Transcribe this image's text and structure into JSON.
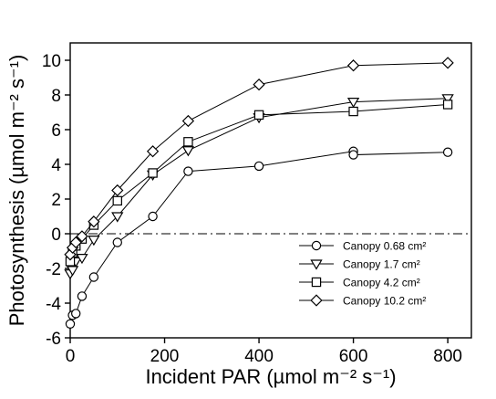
{
  "chart_data": {
    "type": "line",
    "xlabel": "Incident PAR (µmol m⁻² s⁻¹)",
    "ylabel": "Photosynthesis (µmol m⁻² s⁻¹)",
    "xlim": [
      0,
      850
    ],
    "ylim": [
      -6,
      11
    ],
    "x_ticks": [
      0,
      200,
      400,
      600,
      800
    ],
    "y_ticks": [
      -6,
      -4,
      -2,
      0,
      2,
      4,
      6,
      8,
      10
    ],
    "x_tick_labels": [
      "0",
      "200",
      "400",
      "600",
      "800"
    ],
    "y_tick_labels": [
      "-6",
      "-4",
      "-2",
      "0",
      "2",
      "4",
      "6",
      "8",
      "10"
    ],
    "reference_line": {
      "y": 0,
      "style": "dash-dot"
    },
    "grid": false,
    "legend_position": "bottom-right",
    "series": [
      {
        "name": "Canopy 0.68 cm²",
        "marker": "circle",
        "points": [
          [
            0,
            -5.2
          ],
          [
            5,
            -4.7
          ],
          [
            12,
            -4.6
          ],
          [
            25,
            -3.6
          ],
          [
            50,
            -2.5
          ],
          [
            100,
            -0.5
          ],
          [
            175,
            1.0
          ],
          [
            250,
            3.6
          ],
          [
            400,
            3.9
          ],
          [
            600,
            4.75
          ],
          [
            600,
            4.55
          ],
          [
            800,
            4.7
          ]
        ]
      },
      {
        "name": "Canopy 1.7 cm²",
        "marker": "triangle-down",
        "points": [
          [
            0,
            -2.3
          ],
          [
            5,
            -2.1
          ],
          [
            12,
            -1.6
          ],
          [
            25,
            -1.4
          ],
          [
            50,
            -0.35
          ],
          [
            100,
            1.0
          ],
          [
            175,
            3.4
          ],
          [
            250,
            4.8
          ],
          [
            400,
            6.7
          ],
          [
            600,
            7.6
          ],
          [
            800,
            7.8
          ]
        ]
      },
      {
        "name": "Canopy 4.2 cm²",
        "marker": "square",
        "points": [
          [
            0,
            -1.6
          ],
          [
            5,
            -1.1
          ],
          [
            12,
            -0.7
          ],
          [
            25,
            -0.3
          ],
          [
            50,
            0.5
          ],
          [
            100,
            1.9
          ],
          [
            175,
            3.5
          ],
          [
            250,
            5.3
          ],
          [
            400,
            6.85
          ],
          [
            600,
            7.05
          ],
          [
            800,
            7.45
          ]
        ]
      },
      {
        "name": "Canopy 10.2 cm²",
        "marker": "diamond",
        "points": [
          [
            0,
            -1.2
          ],
          [
            5,
            -0.8
          ],
          [
            12,
            -0.5
          ],
          [
            25,
            -0.15
          ],
          [
            50,
            0.7
          ],
          [
            100,
            2.5
          ],
          [
            175,
            4.75
          ],
          [
            250,
            6.5
          ],
          [
            400,
            8.6
          ],
          [
            600,
            9.7
          ],
          [
            800,
            9.85
          ]
        ]
      }
    ]
  }
}
